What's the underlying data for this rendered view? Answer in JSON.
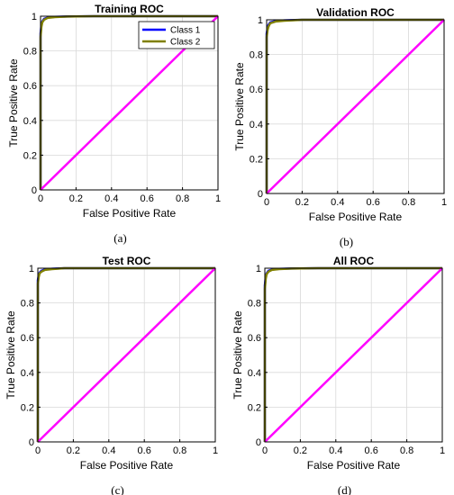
{
  "colors": {
    "class1": "#0000ff",
    "class2": "#808000",
    "diagonal": "#ff00ff",
    "grid": "#d9d9d9",
    "axes": "#000000"
  },
  "chart_data": [
    {
      "type": "line",
      "title": "Training ROC",
      "xlabel": "False Positive Rate",
      "ylabel": "True Positive Rate",
      "panel_label": "(a)",
      "xlim": [
        0,
        1
      ],
      "ylim": [
        0,
        1
      ],
      "xticks": [
        "0",
        "0.2",
        "0.4",
        "0.6",
        "0.8",
        "1"
      ],
      "yticks": [
        "0",
        "0.2",
        "0.4",
        "0.6",
        "0.8",
        "1"
      ],
      "grid": true,
      "legend": {
        "placement": "top-right",
        "entries": [
          "Class 1",
          "Class 2"
        ]
      },
      "series": [
        {
          "name": "Class 1",
          "color": "#0000ff",
          "x": [
            0,
            0,
            0.005,
            0.01,
            0.02,
            0.04,
            0.08,
            0.15,
            0.3,
            0.6,
            1
          ],
          "y": [
            0,
            0.9,
            0.95,
            0.97,
            0.985,
            0.992,
            0.996,
            0.998,
            1,
            1,
            1
          ]
        },
        {
          "name": "Class 2",
          "color": "#808000",
          "x": [
            0,
            0,
            0.005,
            0.01,
            0.02,
            0.04,
            0.08,
            0.15,
            0.3,
            0.6,
            1
          ],
          "y": [
            0,
            0.88,
            0.94,
            0.965,
            0.98,
            0.99,
            0.995,
            0.998,
            1,
            1,
            1
          ]
        },
        {
          "name": "",
          "color": "#ff00ff",
          "x": [
            0,
            1
          ],
          "y": [
            0,
            1
          ]
        }
      ]
    },
    {
      "type": "line",
      "title": "Validation ROC",
      "xlabel": "False Positive Rate",
      "ylabel": "True Positive Rate",
      "panel_label": "(b)",
      "xlim": [
        0,
        1
      ],
      "ylim": [
        0,
        1
      ],
      "xticks": [
        "0",
        "0.2",
        "0.4",
        "0.6",
        "0.8",
        "1"
      ],
      "yticks": [
        "0",
        "0.2",
        "0.4",
        "0.6",
        "0.8",
        "1"
      ],
      "grid": true,
      "series": [
        {
          "name": "Class 1",
          "color": "#0000ff",
          "x": [
            0,
            0,
            0.005,
            0.01,
            0.02,
            0.05,
            0.1,
            0.2,
            0.5,
            1
          ],
          "y": [
            0,
            0.92,
            0.95,
            0.97,
            0.985,
            0.993,
            0.997,
            1,
            1,
            1
          ]
        },
        {
          "name": "Class 2",
          "color": "#808000",
          "x": [
            0,
            0,
            0.005,
            0.01,
            0.02,
            0.05,
            0.1,
            0.2,
            0.5,
            1
          ],
          "y": [
            0,
            0.9,
            0.94,
            0.96,
            0.98,
            0.99,
            0.995,
            1,
            1,
            1
          ]
        },
        {
          "name": "",
          "color": "#ff00ff",
          "x": [
            0,
            1
          ],
          "y": [
            0,
            1
          ]
        }
      ]
    },
    {
      "type": "line",
      "title": "Test ROC",
      "xlabel": "False Positive Rate",
      "ylabel": "True Positive Rate",
      "panel_label": "(c)",
      "xlim": [
        0,
        1
      ],
      "ylim": [
        0,
        1
      ],
      "xticks": [
        "0",
        "0.2",
        "0.4",
        "0.6",
        "0.8",
        "1"
      ],
      "yticks": [
        "0",
        "0.2",
        "0.4",
        "0.6",
        "0.8",
        "1"
      ],
      "grid": true,
      "series": [
        {
          "name": "Class 1",
          "color": "#0000ff",
          "x": [
            0,
            0,
            0.005,
            0.01,
            0.02,
            0.04,
            0.08,
            0.15,
            0.4,
            1
          ],
          "y": [
            0,
            0.93,
            0.96,
            0.975,
            0.985,
            0.993,
            0.997,
            1,
            1,
            1
          ]
        },
        {
          "name": "Class 2",
          "color": "#808000",
          "x": [
            0,
            0,
            0.005,
            0.01,
            0.02,
            0.04,
            0.08,
            0.15,
            0.4,
            1
          ],
          "y": [
            0,
            0.91,
            0.95,
            0.97,
            0.98,
            0.99,
            0.995,
            1,
            1,
            1
          ]
        },
        {
          "name": "",
          "color": "#ff00ff",
          "x": [
            0,
            1
          ],
          "y": [
            0,
            1
          ]
        }
      ]
    },
    {
      "type": "line",
      "title": "All ROC",
      "xlabel": "False Positive Rate",
      "ylabel": "True Positive Rate",
      "panel_label": "(d)",
      "xlim": [
        0,
        1
      ],
      "ylim": [
        0,
        1
      ],
      "xticks": [
        "0",
        "0.2",
        "0.4",
        "0.6",
        "0.8",
        "1"
      ],
      "yticks": [
        "0",
        "0.2",
        "0.4",
        "0.6",
        "0.8",
        "1"
      ],
      "grid": true,
      "series": [
        {
          "name": "Class 1",
          "color": "#0000ff",
          "x": [
            0,
            0,
            0.005,
            0.01,
            0.02,
            0.04,
            0.08,
            0.15,
            0.3,
            0.6,
            1
          ],
          "y": [
            0,
            0.9,
            0.95,
            0.97,
            0.985,
            0.992,
            0.996,
            0.998,
            1,
            1,
            1
          ]
        },
        {
          "name": "Class 2",
          "color": "#808000",
          "x": [
            0,
            0,
            0.005,
            0.01,
            0.02,
            0.04,
            0.08,
            0.15,
            0.3,
            0.6,
            1
          ],
          "y": [
            0,
            0.88,
            0.94,
            0.965,
            0.98,
            0.99,
            0.995,
            0.998,
            1,
            1,
            1
          ]
        },
        {
          "name": "",
          "color": "#ff00ff",
          "x": [
            0,
            1
          ],
          "y": [
            0,
            1
          ]
        }
      ]
    }
  ]
}
